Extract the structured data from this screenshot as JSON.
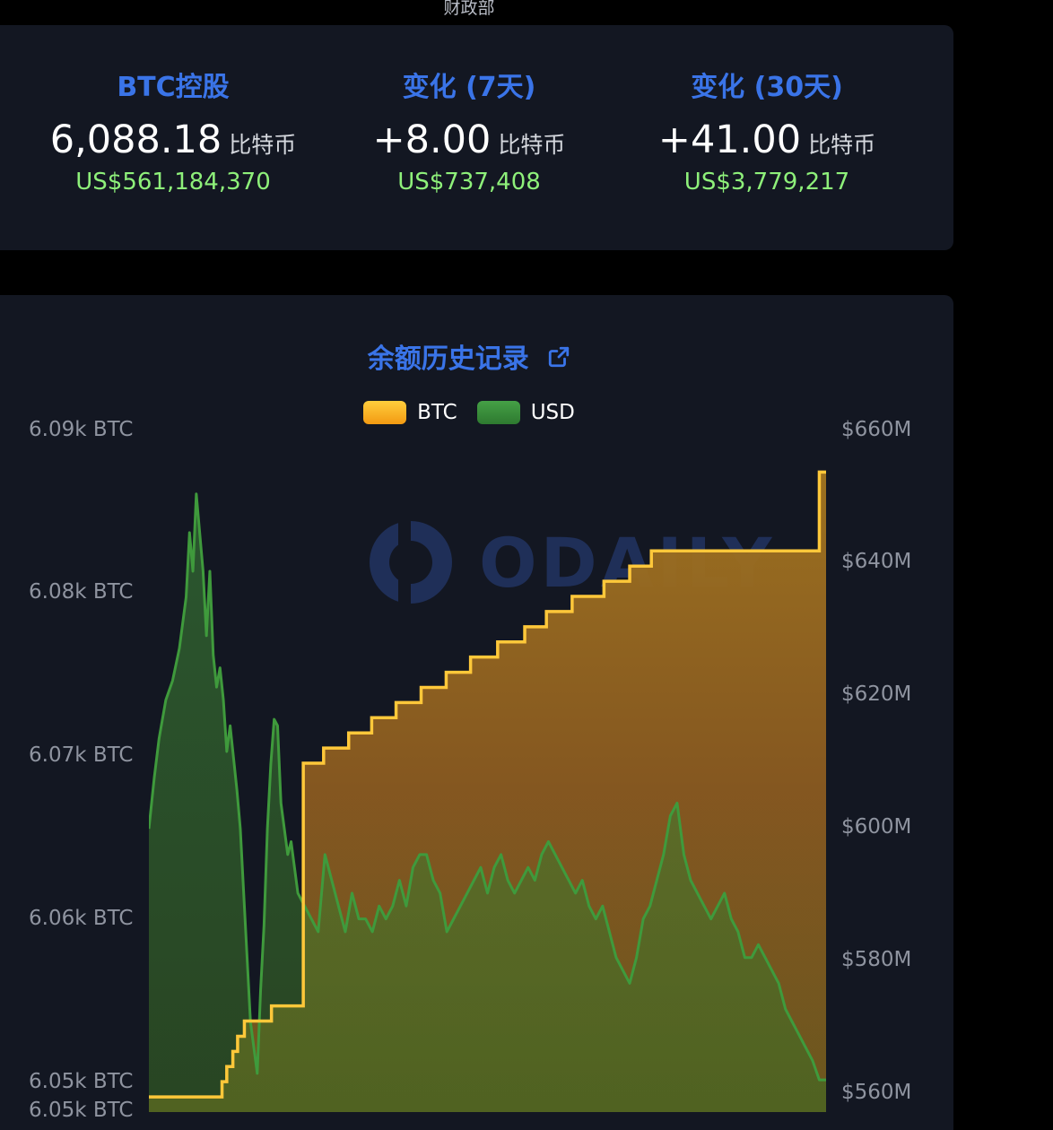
{
  "page": {
    "top_label": "财政部"
  },
  "stats": [
    {
      "title": "BTC控股",
      "value": "6,088.18",
      "unit": "比特币",
      "usd": "US$561,184,370"
    },
    {
      "title": "变化 (7天)",
      "value": "+8.00",
      "unit": "比特币",
      "usd": "US$737,408"
    },
    {
      "title": "变化 (30天)",
      "value": "+41.00",
      "unit": "比特币",
      "usd": "US$3,779,217"
    }
  ],
  "chart_section": {
    "title": "余额历史记录",
    "link_icon": "external-link-icon",
    "watermark": "ODAILY"
  },
  "colors": {
    "accent_blue": "#3a74e8",
    "usd_green": "#8ef07a",
    "btc_line": "#ffc83a",
    "usd_line": "#3f9a3c"
  },
  "chart_data": {
    "type": "line",
    "legend": [
      {
        "name": "BTC",
        "color": "#ffc83a"
      },
      {
        "name": "USD",
        "color": "#3f9a3c"
      }
    ],
    "left_axis_ticks": [
      "6.09k BTC",
      "6.08k BTC",
      "6.07k BTC",
      "6.06k BTC",
      "6.05k BTC",
      "6.05k BTC"
    ],
    "right_axis_ticks": [
      "$660M",
      "$640M",
      "$620M",
      "$600M",
      "$580M",
      "$560M"
    ],
    "ylim_btc": [
      6046,
      6091
    ],
    "ylim_usd": [
      556,
      662
    ],
    "series": [
      {
        "name": "BTC",
        "axis": "left",
        "steps": [
          [
            0.0,
            6047.0
          ],
          [
            0.108,
            6048.0
          ],
          [
            0.115,
            6049.0
          ],
          [
            0.124,
            6050.0
          ],
          [
            0.131,
            6051.0
          ],
          [
            0.141,
            6052.0
          ],
          [
            0.181,
            6053.0
          ],
          [
            0.228,
            6069.0
          ],
          [
            0.258,
            6070.0
          ],
          [
            0.295,
            6071.0
          ],
          [
            0.329,
            6072.0
          ],
          [
            0.365,
            6073.0
          ],
          [
            0.402,
            6074.0
          ],
          [
            0.439,
            6075.0
          ],
          [
            0.475,
            6076.0
          ],
          [
            0.515,
            6077.0
          ],
          [
            0.555,
            6078.0
          ],
          [
            0.587,
            6079.0
          ],
          [
            0.625,
            6080.0
          ],
          [
            0.672,
            6081.0
          ],
          [
            0.71,
            6082.0
          ],
          [
            0.742,
            6083.0
          ],
          [
            0.99,
            6088.2
          ],
          [
            1.0,
            6088.2
          ]
        ]
      },
      {
        "name": "USD",
        "axis": "right",
        "points": [
          [
            0.0,
            600
          ],
          [
            0.008,
            608
          ],
          [
            0.015,
            614
          ],
          [
            0.025,
            620
          ],
          [
            0.035,
            623
          ],
          [
            0.045,
            628
          ],
          [
            0.055,
            636
          ],
          [
            0.06,
            646
          ],
          [
            0.065,
            640
          ],
          [
            0.07,
            652
          ],
          [
            0.075,
            646
          ],
          [
            0.08,
            640
          ],
          [
            0.085,
            630
          ],
          [
            0.09,
            640
          ],
          [
            0.095,
            627
          ],
          [
            0.1,
            622
          ],
          [
            0.105,
            625
          ],
          [
            0.11,
            620
          ],
          [
            0.115,
            612
          ],
          [
            0.12,
            616
          ],
          [
            0.125,
            611
          ],
          [
            0.13,
            606
          ],
          [
            0.135,
            600
          ],
          [
            0.14,
            590
          ],
          [
            0.145,
            580
          ],
          [
            0.15,
            570
          ],
          [
            0.155,
            566
          ],
          [
            0.16,
            562
          ],
          [
            0.165,
            575
          ],
          [
            0.17,
            585
          ],
          [
            0.175,
            600
          ],
          [
            0.18,
            610
          ],
          [
            0.185,
            617
          ],
          [
            0.19,
            616
          ],
          [
            0.195,
            604
          ],
          [
            0.2,
            600
          ],
          [
            0.205,
            596
          ],
          [
            0.21,
            598
          ],
          [
            0.22,
            590
          ],
          [
            0.23,
            588
          ],
          [
            0.24,
            586
          ],
          [
            0.25,
            584
          ],
          [
            0.26,
            596
          ],
          [
            0.27,
            592
          ],
          [
            0.28,
            588
          ],
          [
            0.29,
            584
          ],
          [
            0.3,
            590
          ],
          [
            0.31,
            586
          ],
          [
            0.32,
            586
          ],
          [
            0.33,
            584
          ],
          [
            0.34,
            588
          ],
          [
            0.35,
            586
          ],
          [
            0.36,
            588
          ],
          [
            0.37,
            592
          ],
          [
            0.38,
            588
          ],
          [
            0.39,
            594
          ],
          [
            0.4,
            596
          ],
          [
            0.41,
            596
          ],
          [
            0.42,
            592
          ],
          [
            0.43,
            590
          ],
          [
            0.44,
            584
          ],
          [
            0.45,
            586
          ],
          [
            0.46,
            588
          ],
          [
            0.47,
            590
          ],
          [
            0.48,
            592
          ],
          [
            0.49,
            594
          ],
          [
            0.5,
            590
          ],
          [
            0.51,
            594
          ],
          [
            0.52,
            596
          ],
          [
            0.53,
            592
          ],
          [
            0.54,
            590
          ],
          [
            0.55,
            592
          ],
          [
            0.56,
            594
          ],
          [
            0.57,
            592
          ],
          [
            0.58,
            596
          ],
          [
            0.59,
            598
          ],
          [
            0.6,
            596
          ],
          [
            0.61,
            594
          ],
          [
            0.62,
            592
          ],
          [
            0.63,
            590
          ],
          [
            0.64,
            592
          ],
          [
            0.65,
            588
          ],
          [
            0.66,
            586
          ],
          [
            0.67,
            588
          ],
          [
            0.68,
            584
          ],
          [
            0.69,
            580
          ],
          [
            0.7,
            578
          ],
          [
            0.71,
            576
          ],
          [
            0.72,
            580
          ],
          [
            0.73,
            586
          ],
          [
            0.74,
            588
          ],
          [
            0.75,
            592
          ],
          [
            0.76,
            596
          ],
          [
            0.77,
            602
          ],
          [
            0.78,
            604
          ],
          [
            0.79,
            596
          ],
          [
            0.8,
            592
          ],
          [
            0.81,
            590
          ],
          [
            0.82,
            588
          ],
          [
            0.83,
            586
          ],
          [
            0.84,
            588
          ],
          [
            0.85,
            590
          ],
          [
            0.86,
            586
          ],
          [
            0.87,
            584
          ],
          [
            0.88,
            580
          ],
          [
            0.89,
            580
          ],
          [
            0.9,
            582
          ],
          [
            0.91,
            580
          ],
          [
            0.92,
            578
          ],
          [
            0.93,
            576
          ],
          [
            0.94,
            572
          ],
          [
            0.95,
            570
          ],
          [
            0.96,
            568
          ],
          [
            0.97,
            566
          ],
          [
            0.98,
            564
          ],
          [
            0.99,
            561
          ],
          [
            1.0,
            561
          ]
        ]
      }
    ]
  }
}
